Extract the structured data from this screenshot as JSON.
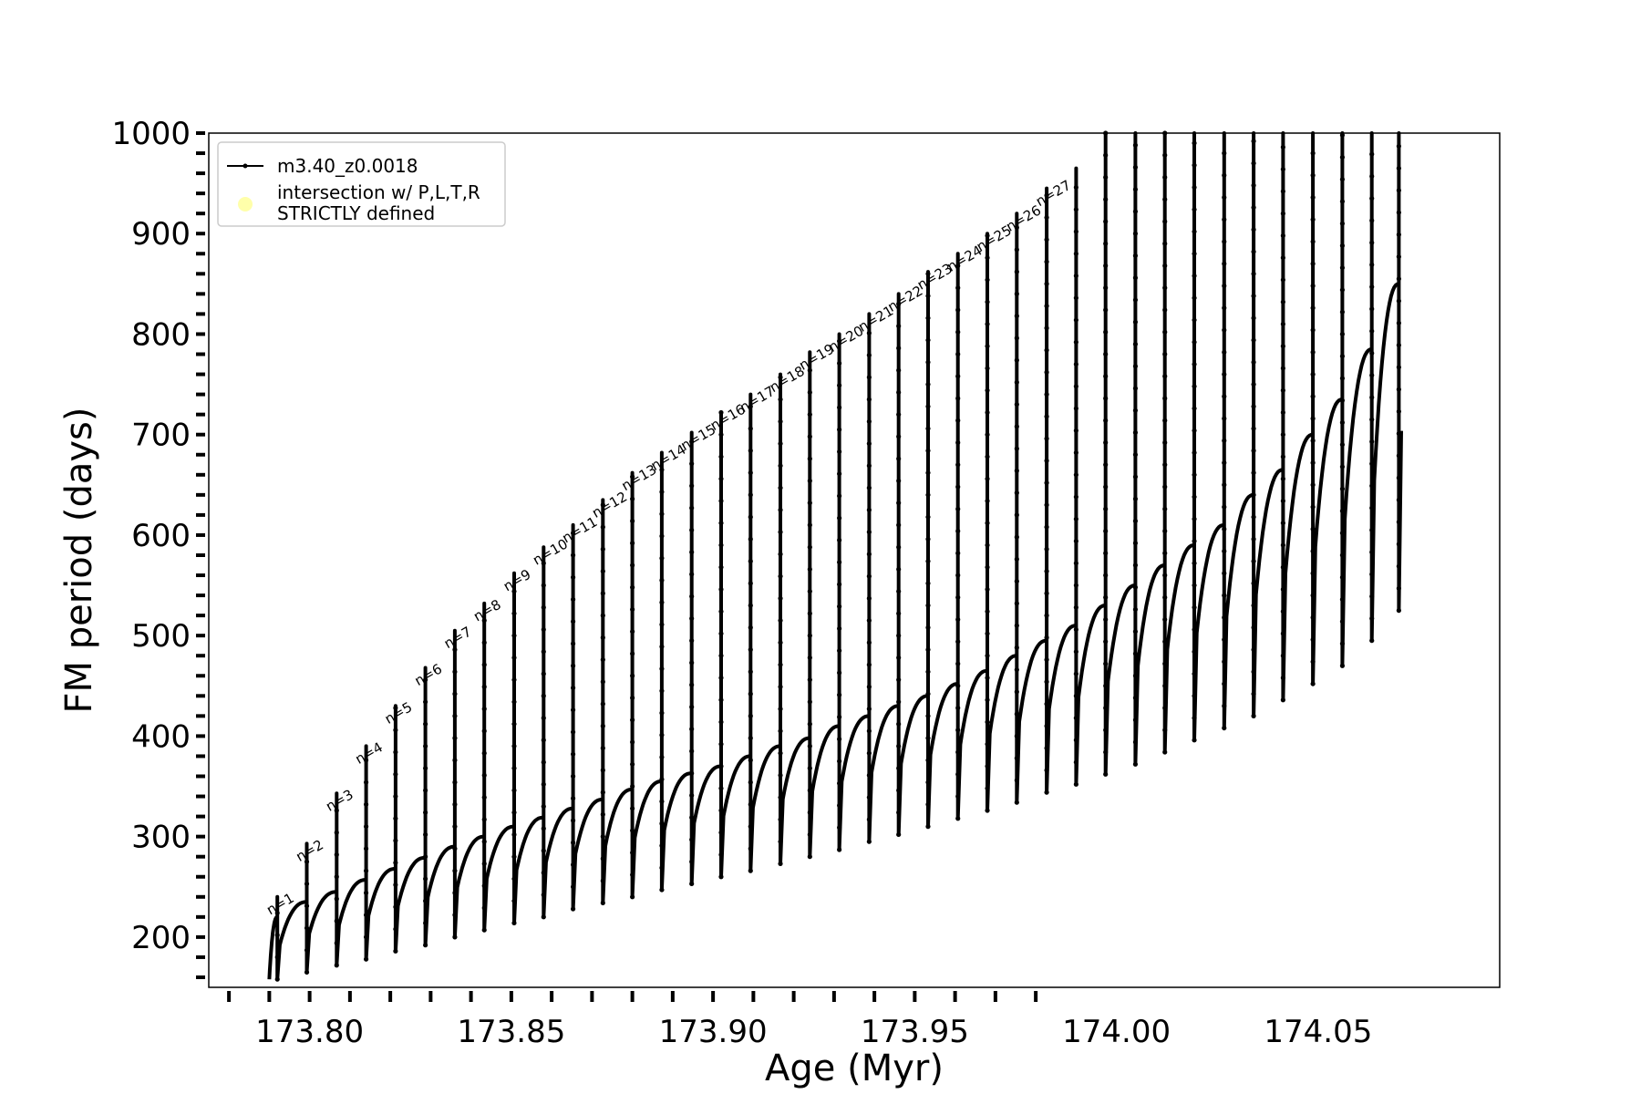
{
  "chart_data": {
    "type": "line",
    "xlabel": "Age (Myr)",
    "ylabel": "FM period (days)",
    "xlim": [
      173.775,
      174.095
    ],
    "ylim": [
      150,
      1000
    ],
    "x_ticks": [
      173.8,
      173.85,
      173.9,
      173.95,
      174.0,
      174.05
    ],
    "x_tick_labels": [
      "173.80",
      "173.85",
      "173.90",
      "173.95",
      "174.00",
      "174.05"
    ],
    "y_ticks": [
      200,
      300,
      400,
      500,
      600,
      700,
      800,
      900,
      1000
    ],
    "y_tick_labels": [
      "200",
      "300",
      "400",
      "500",
      "600",
      "700",
      "800",
      "900",
      "1000"
    ],
    "grid": false,
    "legend_position": "top-left",
    "legend": [
      {
        "label": "m3.40_z0.0018",
        "marker": "line-dot",
        "color": "#000000"
      },
      {
        "label_lines": [
          "intersection w/ P,L,T,R",
          "STRICTLY defined"
        ],
        "marker": "circle",
        "color": "#ffffaa"
      }
    ],
    "series": [
      {
        "name": "m3.40_z0.0018",
        "color": "#000000",
        "start_age": 173.79,
        "pulse_ages": [
          173.792,
          173.7993,
          173.8067,
          173.814,
          173.8213,
          173.8287,
          173.836,
          173.8433,
          173.8507,
          173.858,
          173.8653,
          173.8727,
          173.88,
          173.8873,
          173.8947,
          173.902,
          173.9093,
          173.9167,
          173.924,
          173.9313,
          173.9387,
          173.946,
          173.9533,
          173.9607,
          173.968,
          173.9753,
          173.9827,
          173.99,
          173.9973,
          174.0047,
          174.012,
          174.0193,
          174.0267,
          174.034,
          174.0413,
          174.0487,
          174.056,
          174.0633,
          174.07
        ],
        "pulse_peak_period": [
          220,
          235,
          245,
          257,
          268,
          279,
          290,
          300,
          310,
          319,
          328,
          337,
          347,
          355,
          363,
          370,
          380,
          390,
          398,
          410,
          420,
          430,
          440,
          452,
          465,
          480,
          495,
          510,
          530,
          550,
          570,
          590,
          610,
          640,
          665,
          700,
          735,
          785,
          850
        ],
        "pulse_spike_top": [
          240,
          293,
          343,
          390,
          430,
          468,
          505,
          532,
          562,
          588,
          610,
          635,
          662,
          682,
          702,
          722,
          740,
          760,
          782,
          800,
          820,
          840,
          862,
          880,
          900,
          920,
          945,
          965,
          1000,
          1000,
          1000,
          1000,
          1000,
          1000,
          1000,
          1000,
          1000,
          1000,
          1000
        ],
        "pulse_dip_bottom": [
          158,
          165,
          172,
          178,
          186,
          192,
          200,
          207,
          214,
          220,
          228,
          234,
          240,
          247,
          253,
          260,
          266,
          273,
          280,
          287,
          295,
          302,
          310,
          318,
          326,
          334,
          344,
          352,
          362,
          372,
          384,
          396,
          408,
          420,
          436,
          452,
          470,
          495,
          525
        ]
      }
    ],
    "annotations": [
      "n=1",
      "n=2",
      "n=3",
      "n=4",
      "n=5",
      "n=6",
      "n=7",
      "n=8",
      "n=9",
      "n=10",
      "n=11",
      "n=12",
      "n=13",
      "n=14",
      "n=15",
      "n=16",
      "n=17",
      "n=18",
      "n=19",
      "n=20",
      "n=21",
      "n=22",
      "n=23",
      "n=24",
      "n=25",
      "n=26",
      "n=27"
    ]
  }
}
